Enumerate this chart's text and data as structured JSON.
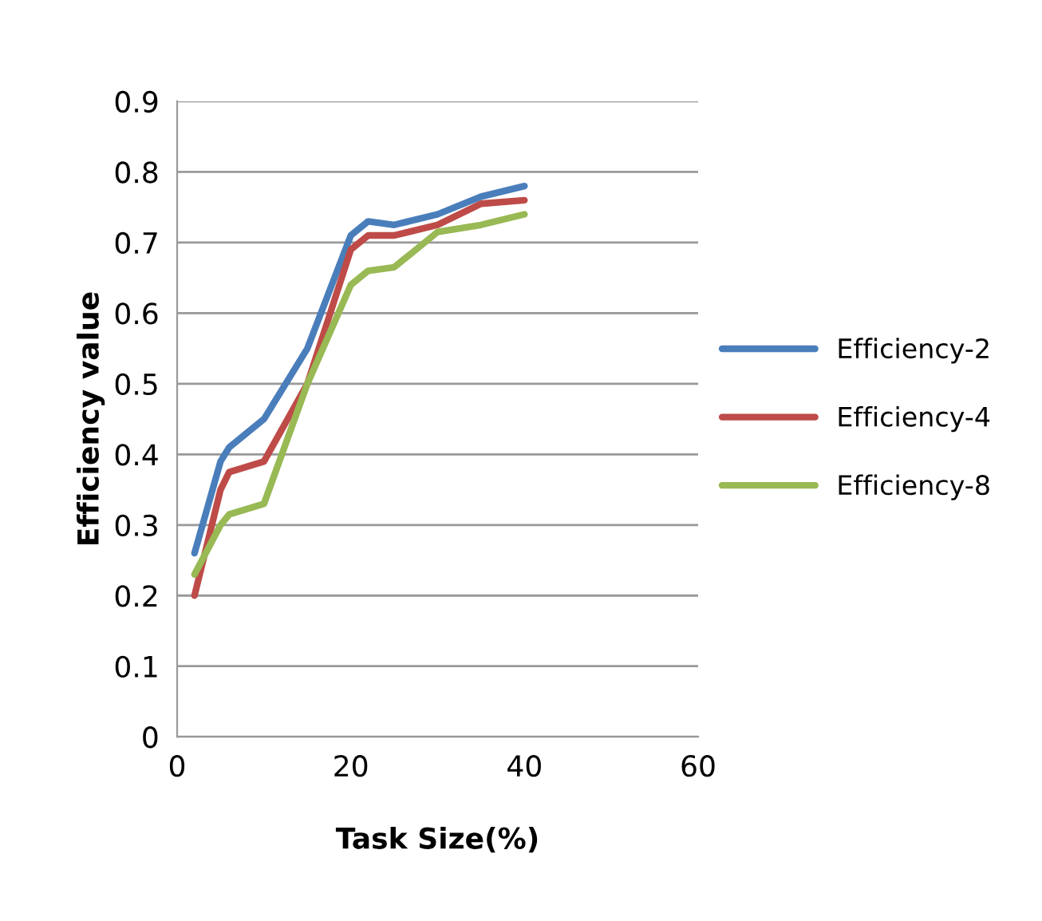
{
  "chart_data": {
    "type": "line",
    "xlabel": "Task Size(%)",
    "ylabel": "Efficiency value",
    "x": [
      2,
      5,
      6,
      10,
      15,
      20,
      22,
      25,
      30,
      35,
      40
    ],
    "series": [
      {
        "name": "Efficiency-2",
        "color": "#4a7ebb",
        "values": [
          0.26,
          0.39,
          0.41,
          0.45,
          0.55,
          0.71,
          0.73,
          0.725,
          0.74,
          0.765,
          0.78
        ]
      },
      {
        "name": "Efficiency-4",
        "color": "#be4b48",
        "values": [
          0.2,
          0.35,
          0.375,
          0.39,
          0.5,
          0.69,
          0.71,
          0.71,
          0.725,
          0.755,
          0.76
        ]
      },
      {
        "name": "Efficiency-8",
        "color": "#98b954",
        "values": [
          0.23,
          0.3,
          0.315,
          0.33,
          0.5,
          0.64,
          0.66,
          0.665,
          0.715,
          0.725,
          0.74
        ]
      }
    ],
    "xlim": [
      0,
      60
    ],
    "xticks": [
      0,
      20,
      40,
      60
    ],
    "ylim": [
      0,
      0.9
    ],
    "yticks": [
      0,
      0.1,
      0.2,
      0.3,
      0.4,
      0.5,
      0.6,
      0.7,
      0.8,
      0.9
    ],
    "grid": "y",
    "legend": "right",
    "marker": "none",
    "line_style": "solid"
  }
}
